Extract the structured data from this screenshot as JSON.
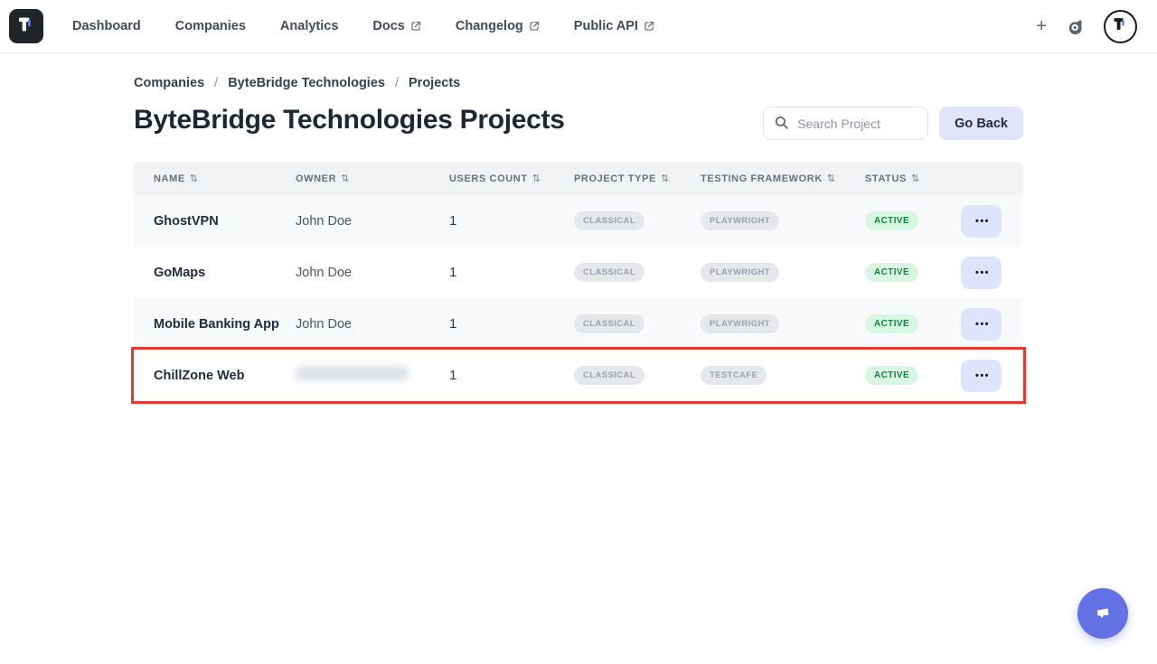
{
  "brand": {
    "logo_mark": "T-mark-icon"
  },
  "nav": {
    "items": [
      {
        "label": "Dashboard",
        "external": false
      },
      {
        "label": "Companies",
        "external": false
      },
      {
        "label": "Analytics",
        "external": false
      },
      {
        "label": "Docs",
        "external": true
      },
      {
        "label": "Changelog",
        "external": true
      },
      {
        "label": "Public API",
        "external": true
      }
    ],
    "right": {
      "add_label": "+",
      "support_icon": "headset-icon",
      "avatar_mark": "T-mark-icon"
    }
  },
  "breadcrumb": {
    "separator": "/",
    "items": [
      "Companies",
      "ByteBridge Technologies",
      "Projects"
    ]
  },
  "page": {
    "title": "ByteBridge Technologies Projects"
  },
  "toolbar": {
    "search_placeholder": "Search Project",
    "go_back_label": "Go Back"
  },
  "table": {
    "columns": [
      {
        "label": "NAME"
      },
      {
        "label": "OWNER"
      },
      {
        "label": "USERS COUNT"
      },
      {
        "label": "PROJECT TYPE"
      },
      {
        "label": "TESTING FRAMEWORK"
      },
      {
        "label": "STATUS"
      }
    ],
    "rows": [
      {
        "name": "GhostVPN",
        "owner": "John Doe",
        "owner_redacted": false,
        "users_count": "1",
        "project_type": "CLASSICAL",
        "testing_framework": "PLAYWRIGHT",
        "status": "ACTIVE",
        "highlighted": false
      },
      {
        "name": "GoMaps",
        "owner": "John Doe",
        "owner_redacted": false,
        "users_count": "1",
        "project_type": "CLASSICAL",
        "testing_framework": "PLAYWRIGHT",
        "status": "ACTIVE",
        "highlighted": false
      },
      {
        "name": "Mobile Banking App",
        "owner": "John Doe",
        "owner_redacted": false,
        "users_count": "1",
        "project_type": "CLASSICAL",
        "testing_framework": "PLAYWRIGHT",
        "status": "ACTIVE",
        "highlighted": false
      },
      {
        "name": "ChillZone Web",
        "owner": "",
        "owner_redacted": true,
        "users_count": "1",
        "project_type": "CLASSICAL",
        "testing_framework": "TESTCAFE",
        "status": "ACTIVE",
        "highlighted": true
      }
    ]
  },
  "icons": {
    "sort": "⇅",
    "ellipsis": "•••",
    "search": "magnifier",
    "external_link": "arrow-out-of-box",
    "chat": "speech-bubble"
  },
  "colors": {
    "accent_indigo": "#6572e6",
    "button_lavender": "#e1e4fb",
    "highlight_red": "#e8372e",
    "status_green_bg": "#d9f6e3",
    "status_green_text": "#158343",
    "badge_gray_bg": "#e6e7ea",
    "badge_gray_text": "#9aa2ad",
    "header_gray_bg": "#f1f2f4",
    "row_shaded_bg": "#f8f9fb",
    "title_navy": "#1d2736",
    "logo_black": "#212529",
    "logo_blue": "#4f7df2"
  }
}
